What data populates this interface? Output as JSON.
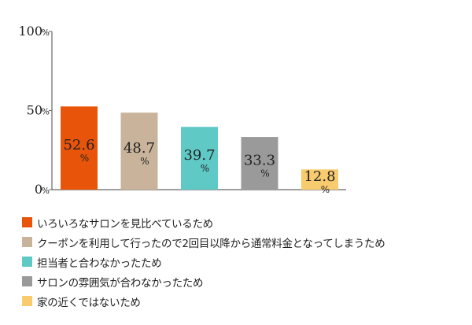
{
  "chart_data": {
    "type": "bar",
    "categories": [
      "いろいろなサロンを見比べているため",
      "クーポンを利用して行ったので2回目以降から通常料金となってしまうため",
      "担当者と合わなかったため",
      "サロンの雰囲気が合わなかったため",
      "家の近くではないため"
    ],
    "values": [
      52.6,
      48.7,
      39.7,
      33.3,
      12.8
    ],
    "value_labels": [
      "52.6",
      "48.7",
      "39.7",
      "33.3",
      "12.8"
    ],
    "value_unit": "%",
    "colors": [
      "#e8540a",
      "#c9b49b",
      "#5fc9c6",
      "#9a9a9a",
      "#f8cb6e"
    ],
    "ylim": [
      0,
      100
    ],
    "y_ticks": [
      {
        "value": 100,
        "label": "100"
      },
      {
        "value": 50,
        "label": "50"
      },
      {
        "value": 0,
        "label": "0"
      }
    ],
    "y_tick_unit": "%",
    "title": "",
    "xlabel": "",
    "ylabel": "",
    "grid": false,
    "legend_position": "bottom"
  }
}
